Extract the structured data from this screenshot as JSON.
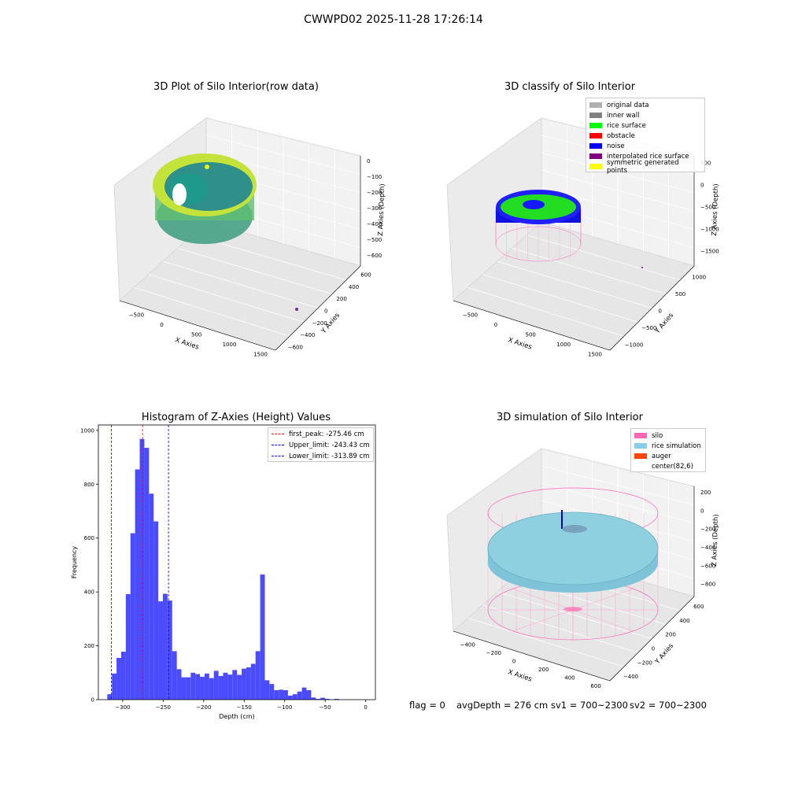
{
  "suptitle": "CWWPD02 2025-11-28 17:26:14",
  "titles": {
    "raw": "3D Plot of Silo Interior(row data)",
    "classify": "3D classify of Silo Interior",
    "hist": "Histogram of Z-Axies (Height) Values",
    "sim": "3D simulation of Silo Interior"
  },
  "axes": {
    "x": "X Axies",
    "y": "Y Axies",
    "z": "Z Axies (Depth)"
  },
  "raw_ticks": {
    "x": [
      "−500",
      "0",
      "500",
      "1000",
      "1500"
    ],
    "y": [
      "−600",
      "−400",
      "−200",
      "0",
      "200",
      "400",
      "600"
    ],
    "z": [
      "0",
      "−100",
      "−200",
      "−300",
      "−400",
      "−500",
      "−600"
    ]
  },
  "classify_ticks": {
    "x": [
      "−500",
      "0",
      "500",
      "1000",
      "1500"
    ],
    "y": [
      "−1000",
      "−500",
      "0",
      "500",
      "1000"
    ],
    "z": [
      "500",
      "0",
      "−500",
      "−1000",
      "−1500"
    ]
  },
  "sim_ticks": {
    "x": [
      "−400",
      "−200",
      "0",
      "200",
      "400",
      "600"
    ],
    "y": [
      "−400",
      "−200",
      "0",
      "200",
      "400",
      "600"
    ],
    "z": [
      "200",
      "0",
      "−200",
      "−400",
      "−600",
      "−800"
    ]
  },
  "classify_legend": [
    {
      "label": "original data",
      "color": "#b0b0b0"
    },
    {
      "label": "inner wall",
      "color": "#808080"
    },
    {
      "label": "rice surface",
      "color": "#00ff00"
    },
    {
      "label": "obstacle",
      "color": "#ff0000"
    },
    {
      "label": "noise",
      "color": "#0000ff"
    },
    {
      "label": "interpolated rice surface",
      "color": "#800080"
    },
    {
      "label": "symmetric generated points",
      "color": "#ffff00"
    }
  ],
  "sim_legend": [
    {
      "label": "silo",
      "color": "#ff69b4"
    },
    {
      "label": "rice simulation",
      "color": "#87ceeb"
    },
    {
      "label": "auger",
      "color": "#ff4500"
    },
    {
      "label": "center(82,6)",
      "color": ""
    }
  ],
  "footer": {
    "flag": "flag = 0",
    "avg": "avgDepth = 276 cm",
    "sv1": "sv1 = 700~2300",
    "sv2": "sv2 = 700~2300"
  },
  "chart_data": {
    "type": "bar",
    "title": "Histogram of Z-Axies (Height) Values",
    "xlabel": "Depth (cm)",
    "ylabel": "Frequency",
    "xlim": [
      -330,
      12
    ],
    "ylim": [
      0,
      1020
    ],
    "xticks": [
      -300,
      -250,
      -200,
      -150,
      -100,
      -50,
      0
    ],
    "yticks": [
      0,
      200,
      400,
      600,
      800,
      1000
    ],
    "bar_color": "#4b4bff",
    "bin_width": 5.72,
    "bin_start": -319,
    "values": [
      20,
      97,
      155,
      178,
      392,
      618,
      855,
      968,
      935,
      765,
      662,
      365,
      393,
      368,
      180,
      113,
      83,
      83,
      100,
      95,
      85,
      97,
      80,
      107,
      88,
      100,
      93,
      110,
      92,
      115,
      120,
      133,
      180,
      465,
      72,
      58,
      35,
      37,
      35,
      15,
      20,
      30,
      45,
      35,
      8,
      3,
      7,
      3,
      0,
      3
    ],
    "lines": [
      {
        "label": "first_peak: -275.46 cm",
        "x": -275.46,
        "color": "#ff0000"
      },
      {
        "label": "Upper_limit: -243.43 cm",
        "x": -243.43,
        "color": "#0000ff"
      },
      {
        "label": "Lower_limit: -313.89 cm",
        "x": -313.89,
        "color": "#0000ff"
      }
    ],
    "legend_position": "top-right"
  }
}
